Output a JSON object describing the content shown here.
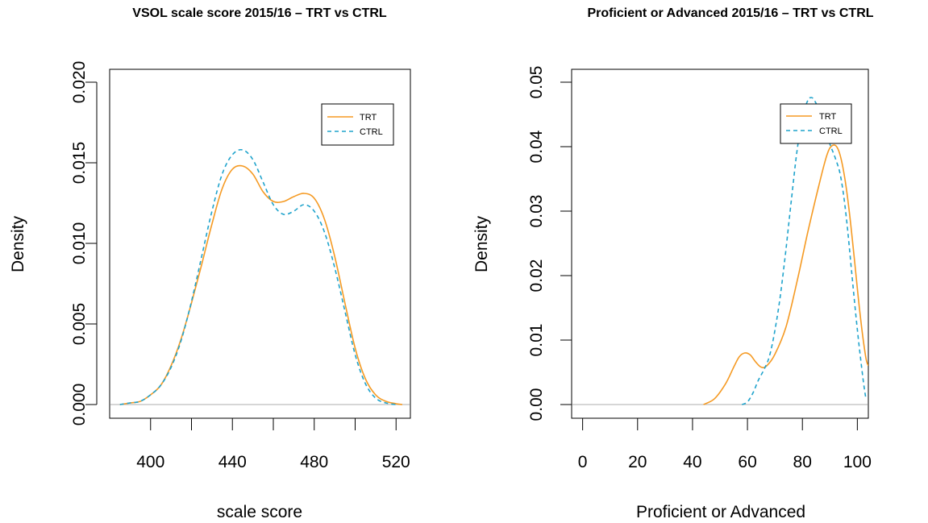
{
  "chart_data": [
    {
      "type": "line",
      "title": "VSOL scale score 2015/16 – TRT vs CTRL",
      "xlabel": "scale score",
      "ylabel": "Density",
      "xlim": [
        380,
        527
      ],
      "ylim": [
        0,
        0.02
      ],
      "x_ticks": [
        400,
        420,
        440,
        460,
        480,
        500,
        520
      ],
      "x_tick_labels": [
        "400",
        "",
        "440",
        "",
        "480",
        "",
        "520"
      ],
      "y_ticks": [
        0,
        0.005,
        0.01,
        0.015,
        0.02
      ],
      "y_tick_labels": [
        "0.000",
        "0.005",
        "0.010",
        "0.015",
        "0.020"
      ],
      "baseline": 0,
      "legend": {
        "position": "top-right",
        "entries": [
          "TRT",
          "CTRL"
        ]
      },
      "series": [
        {
          "name": "TRT",
          "color": "#F59A23",
          "style": "solid",
          "x": [
            385,
            390,
            395,
            400,
            405,
            410,
            415,
            420,
            425,
            430,
            435,
            440,
            445,
            450,
            455,
            460,
            465,
            470,
            475,
            480,
            485,
            490,
            495,
            500,
            505,
            510,
            515,
            520,
            523
          ],
          "y": [
            0.0,
            0.0001,
            0.0002,
            0.0006,
            0.0012,
            0.0024,
            0.0041,
            0.0063,
            0.0087,
            0.0112,
            0.0134,
            0.0146,
            0.0148,
            0.0143,
            0.0132,
            0.0126,
            0.0126,
            0.0129,
            0.0131,
            0.0128,
            0.0115,
            0.0092,
            0.0063,
            0.0035,
            0.0016,
            0.0006,
            0.0002,
            5e-05,
            0.0
          ]
        },
        {
          "name": "CTRL",
          "color": "#1FA3CC",
          "style": "dashed",
          "x": [
            385,
            390,
            395,
            400,
            405,
            410,
            415,
            420,
            425,
            430,
            435,
            440,
            445,
            450,
            455,
            460,
            465,
            470,
            475,
            480,
            485,
            490,
            495,
            500,
            505,
            510,
            515,
            520
          ],
          "y": [
            0.0,
            0.0001,
            0.0002,
            0.0006,
            0.0012,
            0.0023,
            0.004,
            0.0064,
            0.0092,
            0.012,
            0.0143,
            0.0155,
            0.0158,
            0.0152,
            0.0138,
            0.0124,
            0.0118,
            0.012,
            0.0124,
            0.012,
            0.0107,
            0.0085,
            0.0058,
            0.0031,
            0.0013,
            0.0004,
            0.0001,
            0.0
          ]
        }
      ]
    },
    {
      "type": "line",
      "title": "Proficient or Advanced 2015/16 – TRT vs CTRL",
      "xlabel": "Proficient or Advanced",
      "ylabel": "Density",
      "xlim": [
        -4,
        104
      ],
      "ylim": [
        0,
        0.05
      ],
      "x_ticks": [
        0,
        20,
        40,
        60,
        80,
        100
      ],
      "x_tick_labels": [
        "0",
        "20",
        "40",
        "60",
        "80",
        "100"
      ],
      "y_ticks": [
        0,
        0.01,
        0.02,
        0.03,
        0.04,
        0.05
      ],
      "y_tick_labels": [
        "0.00",
        "0.01",
        "0.02",
        "0.03",
        "0.04",
        "0.05"
      ],
      "baseline": 0,
      "legend": {
        "position": "top-right",
        "entries": [
          "TRT",
          "CTRL"
        ]
      },
      "series": [
        {
          "name": "TRT",
          "color": "#F59A23",
          "style": "solid",
          "x": [
            44,
            48,
            52,
            55,
            57,
            59,
            61,
            63,
            65,
            67,
            70,
            74,
            78,
            82,
            86,
            89,
            91,
            93,
            95,
            97,
            99,
            101,
            103,
            104
          ],
          "y": [
            0.0,
            0.0009,
            0.0032,
            0.0058,
            0.0074,
            0.008,
            0.0077,
            0.0066,
            0.0058,
            0.006,
            0.0078,
            0.012,
            0.019,
            0.0268,
            0.034,
            0.0388,
            0.0402,
            0.0396,
            0.0362,
            0.0302,
            0.0222,
            0.014,
            0.0075,
            0.006
          ]
        },
        {
          "name": "CTRL",
          "color": "#1FA3CC",
          "style": "dashed",
          "x": [
            58,
            60,
            62,
            64,
            66,
            68,
            70,
            72,
            74,
            76,
            78,
            80,
            82,
            83,
            84,
            86,
            88,
            90,
            92,
            94,
            96,
            98,
            100,
            102,
            103
          ],
          "y": [
            0.0,
            0.0004,
            0.0018,
            0.0038,
            0.0054,
            0.0075,
            0.0115,
            0.017,
            0.024,
            0.0318,
            0.0392,
            0.0446,
            0.0472,
            0.0476,
            0.0474,
            0.0458,
            0.0432,
            0.0404,
            0.0382,
            0.0352,
            0.029,
            0.0202,
            0.0116,
            0.0042,
            0.0012
          ]
        }
      ]
    }
  ]
}
